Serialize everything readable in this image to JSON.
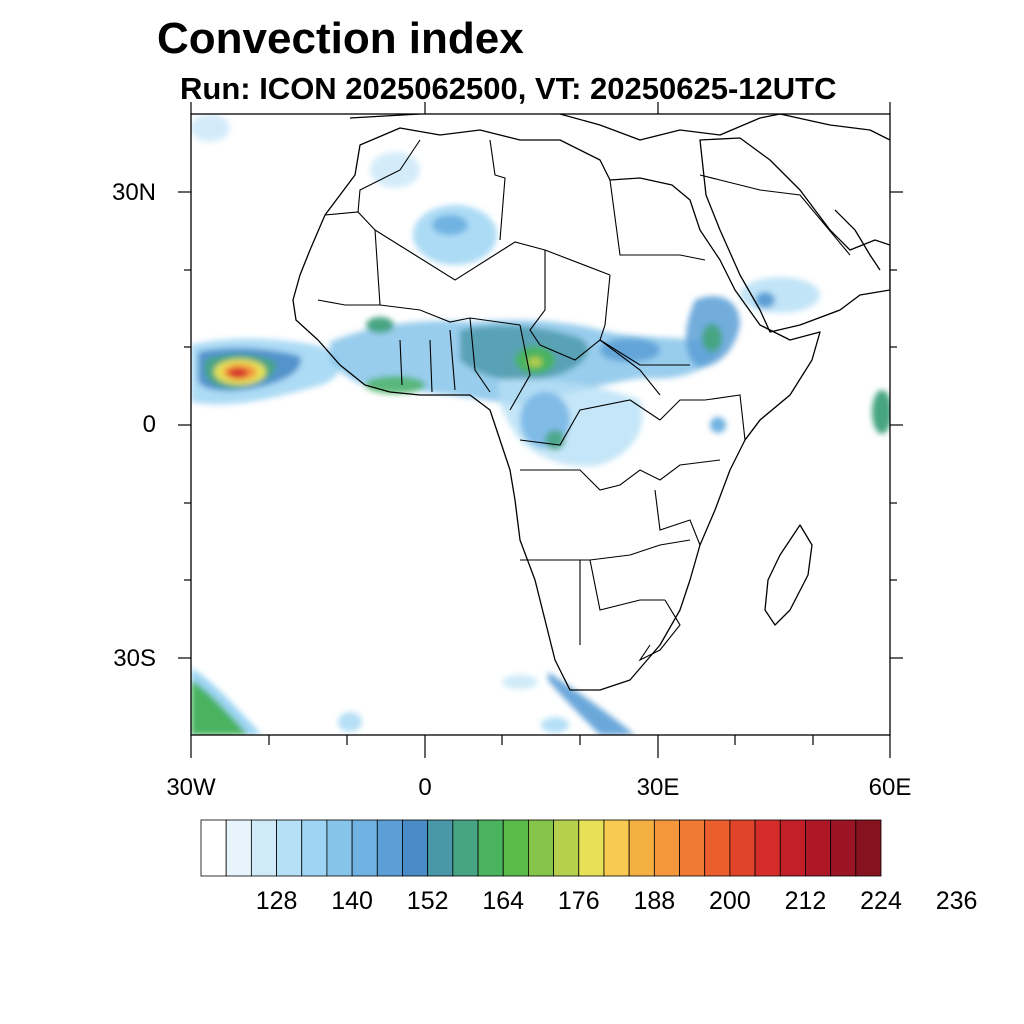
{
  "title": "Convection index",
  "subtitle": "Run: ICON 2025062500,  VT: 20250625-12UTC",
  "map": {
    "extent": {
      "lon_min": -30,
      "lon_max": 60,
      "lat_min": -40,
      "lat_max": 40
    },
    "lat_ticks": [
      {
        "value": 30,
        "label": "30N"
      },
      {
        "value": 0,
        "label": "0"
      },
      {
        "value": -30,
        "label": "30S"
      }
    ],
    "lon_ticks": [
      {
        "value": -30,
        "label": "30W"
      },
      {
        "value": 0,
        "label": "0"
      },
      {
        "value": 30,
        "label": "30E"
      },
      {
        "value": 60,
        "label": "60E"
      }
    ]
  },
  "colorbar": {
    "colors": [
      "#ffffff",
      "#e8f4fb",
      "#cfeaf8",
      "#b6e0f6",
      "#9dd5f3",
      "#86c4ea",
      "#70b2e2",
      "#5b9fd6",
      "#4a8cc8",
      "#4898a8",
      "#47a583",
      "#4ab360",
      "#5cbc4a",
      "#86c44a",
      "#b6cf4c",
      "#e6e156",
      "#f8ca52",
      "#f5b044",
      "#f4963c",
      "#f07a34",
      "#eb5e2e",
      "#e0442a",
      "#d62d2a",
      "#c31f28",
      "#ae1726",
      "#9a1423",
      "#861220"
    ],
    "labels": [
      "128",
      "140",
      "152",
      "164",
      "176",
      "188",
      "200",
      "212",
      "224",
      "236"
    ]
  }
}
